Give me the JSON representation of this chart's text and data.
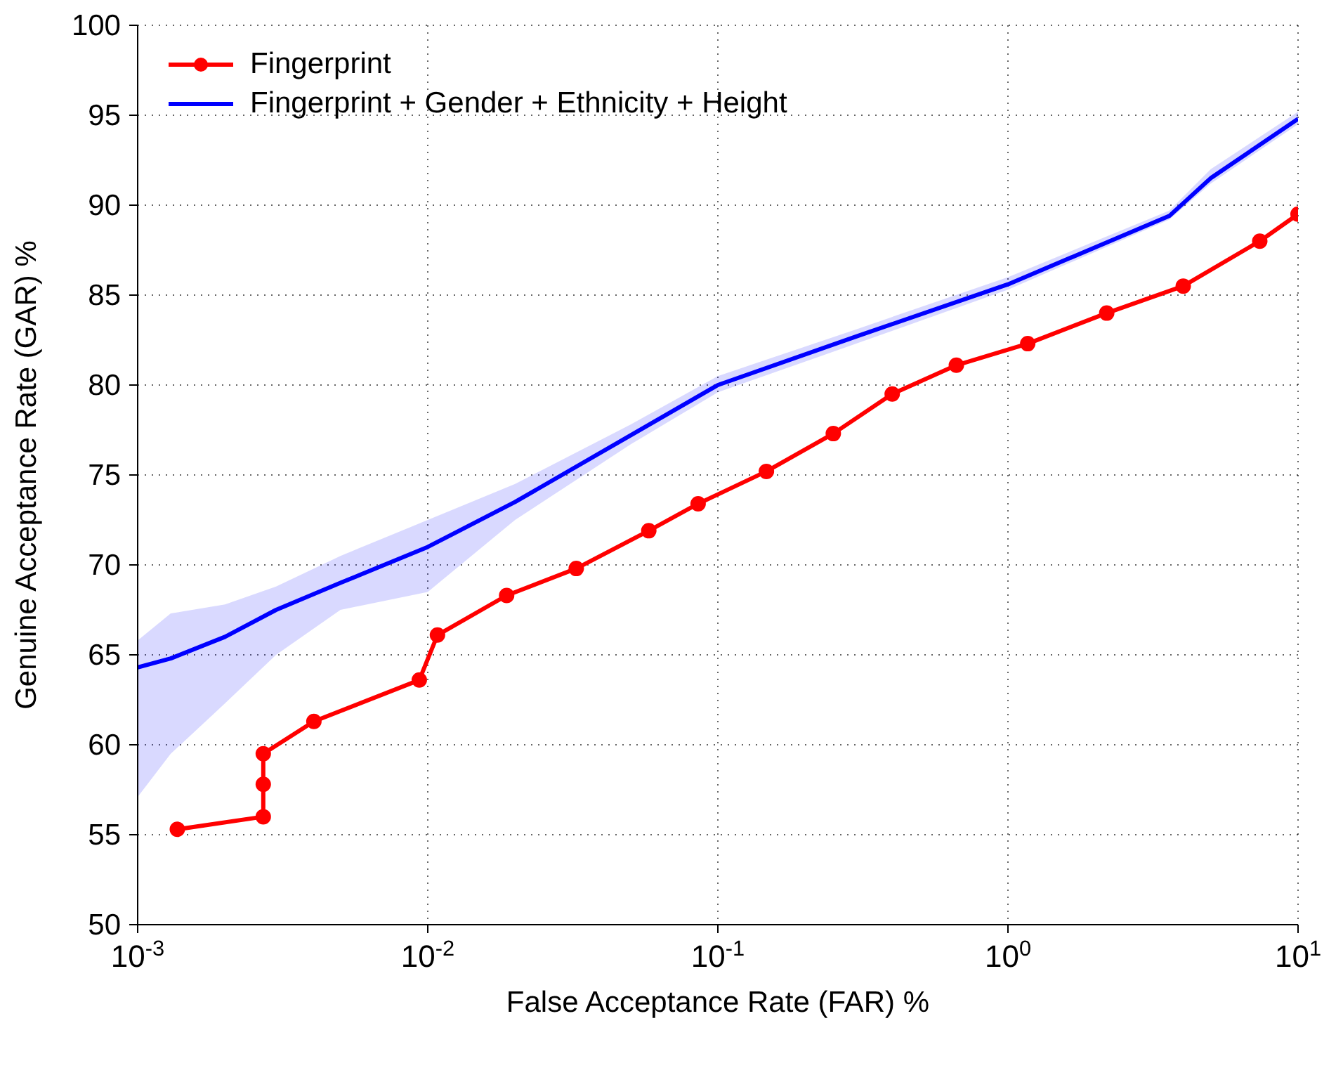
{
  "chart_data": {
    "type": "line",
    "xlabel": "False Acceptance Rate (FAR) %",
    "ylabel": "Genuine Acceptance Rate (GAR) %",
    "log": "x",
    "xlim": [
      0.001,
      10
    ],
    "ylim": [
      50,
      100
    ],
    "xticks": [
      {
        "value": 0.001,
        "label": "10$^{-3}$"
      },
      {
        "value": 0.01,
        "label": "10$^{-2}$"
      },
      {
        "value": 0.1,
        "label": "10$^{-1}$"
      },
      {
        "value": 1,
        "label": "10$^{0}$"
      },
      {
        "value": 10,
        "label": "10$^{1}$"
      }
    ],
    "yticks": [
      50,
      55,
      60,
      65,
      70,
      75,
      80,
      85,
      90,
      95,
      100
    ],
    "grid": true,
    "legend": "top left",
    "line_style": "solid",
    "series": [
      {
        "name": "Fingerprint",
        "color": "#ff0000",
        "marker": "circle",
        "x": [
          0.00137,
          0.00271,
          0.00271,
          0.00271,
          0.00405,
          0.00935,
          0.0108,
          0.0187,
          0.0325,
          0.0578,
          0.0855,
          0.147,
          0.25,
          0.399,
          0.664,
          1.17,
          2.19,
          4.02,
          7.38,
          10
        ],
        "values": [
          55.3,
          56.0,
          57.8,
          59.5,
          61.3,
          63.6,
          66.1,
          68.3,
          69.8,
          71.9,
          73.4,
          75.2,
          77.3,
          79.5,
          81.1,
          82.3,
          84.0,
          85.5,
          88.0,
          89.5
        ]
      },
      {
        "name": "Fingerprint + Gender + Ethnicity + Height",
        "color": "#0000ff",
        "marker": "none",
        "x": [
          0.001,
          0.0013,
          0.002,
          0.003,
          0.005,
          0.01,
          0.02,
          0.05,
          0.1,
          0.3,
          1,
          3.6,
          5,
          10
        ],
        "values": [
          64.3,
          64.8,
          66,
          67.5,
          69,
          71,
          73.5,
          77.2,
          80,
          82.7,
          85.6,
          89.4,
          91.5,
          94.8
        ],
        "lower": [
          57.1,
          59.5,
          62.3,
          65,
          67.5,
          68.5,
          72.5,
          76.7,
          79.6,
          82.3,
          85.3,
          89.2,
          91.2,
          94.5
        ],
        "upper": [
          65.8,
          67.3,
          67.8,
          68.8,
          70.5,
          72.5,
          74.5,
          77.8,
          80.5,
          83.1,
          86,
          89.7,
          92,
          95.2
        ]
      }
    ]
  }
}
